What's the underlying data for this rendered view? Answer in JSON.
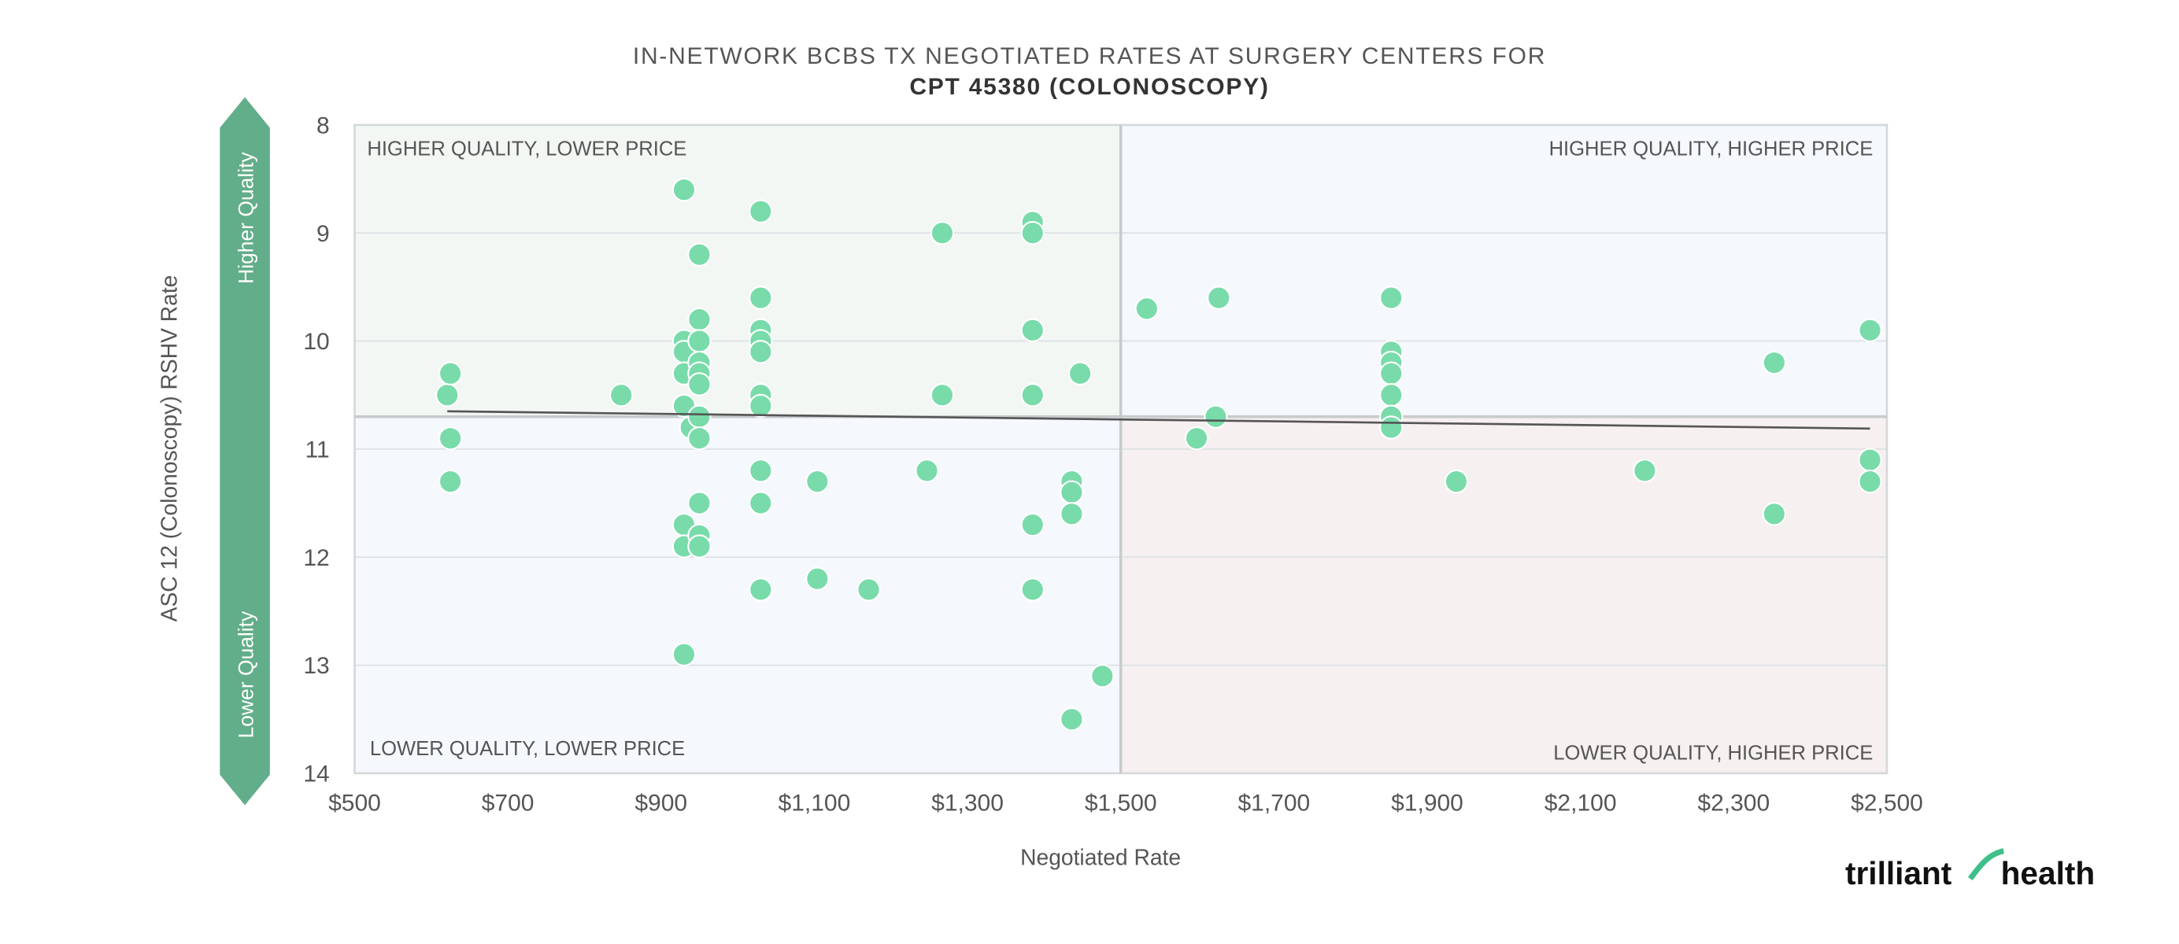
{
  "chart_data": {
    "type": "scatter",
    "title": "IN-NETWORK BCBS TX NEGOTIATED RATES AT SURGERY CENTERS FOR",
    "subtitle": "CPT 45380 (COLONOSCOPY)",
    "xlabel": "Negotiated Rate",
    "ylabel": "ASC 12 (Colonoscopy) RSHV Rate",
    "xlim": [
      500,
      2500
    ],
    "ylim": [
      8,
      14
    ],
    "y_inverted": true,
    "grid": true,
    "x_ticks": [
      "$500",
      "$700",
      "$900",
      "$1,100",
      "$1,300",
      "$1,500",
      "$1,700",
      "$1,900",
      "$2,100",
      "$2,300",
      "$2,500"
    ],
    "x_tick_values": [
      500,
      700,
      900,
      1100,
      1300,
      1500,
      1700,
      1900,
      2100,
      2300,
      2500
    ],
    "y_ticks": [
      "8",
      "9",
      "10",
      "11",
      "12",
      "13",
      "14"
    ],
    "y_tick_values": [
      8,
      9,
      10,
      11,
      12,
      13,
      14
    ],
    "quadrant_split": {
      "x": 1500,
      "y": 10.7
    },
    "quadrants": {
      "top_left": "HIGHER QUALITY, LOWER PRICE",
      "top_right": "HIGHER QUALITY, HIGHER PRICE",
      "bottom_left": "LOWER QUALITY, LOWER PRICE",
      "bottom_right": "LOWER QUALITY, HIGHER PRICE"
    },
    "quality_arrow": {
      "top": "Higher Quality",
      "bottom": "Lower Quality"
    },
    "trendline": {
      "x": [
        621,
        2478
      ],
      "y": [
        10.65,
        10.81
      ]
    },
    "points": [
      [
        621,
        10.5
      ],
      [
        625,
        10.3
      ],
      [
        625,
        10.9
      ],
      [
        625,
        11.3
      ],
      [
        848,
        10.5
      ],
      [
        930,
        8.6
      ],
      [
        930,
        10.0
      ],
      [
        930,
        10.1
      ],
      [
        930,
        10.3
      ],
      [
        930,
        10.6
      ],
      [
        930,
        11.7
      ],
      [
        930,
        11.9
      ],
      [
        930,
        12.9
      ],
      [
        939,
        10.8
      ],
      [
        950,
        9.2
      ],
      [
        950,
        9.8
      ],
      [
        950,
        10.0
      ],
      [
        950,
        10.2
      ],
      [
        950,
        10.3
      ],
      [
        950,
        10.4
      ],
      [
        950,
        10.7
      ],
      [
        950,
        10.9
      ],
      [
        950,
        11.5
      ],
      [
        950,
        11.8
      ],
      [
        950,
        11.9
      ],
      [
        1030,
        8.8
      ],
      [
        1030,
        9.6
      ],
      [
        1030,
        9.9
      ],
      [
        1030,
        10.0
      ],
      [
        1030,
        10.1
      ],
      [
        1030,
        10.5
      ],
      [
        1030,
        10.6
      ],
      [
        1030,
        11.2
      ],
      [
        1030,
        11.5
      ],
      [
        1030,
        12.3
      ],
      [
        1104,
        11.3
      ],
      [
        1104,
        12.2
      ],
      [
        1171,
        12.3
      ],
      [
        1247,
        11.2
      ],
      [
        1267,
        9.0
      ],
      [
        1267,
        10.5
      ],
      [
        1385,
        8.9
      ],
      [
        1385,
        9.0
      ],
      [
        1385,
        9.9
      ],
      [
        1385,
        10.5
      ],
      [
        1385,
        11.7
      ],
      [
        1385,
        12.3
      ],
      [
        1436,
        11.3
      ],
      [
        1436,
        11.4
      ],
      [
        1436,
        11.6
      ],
      [
        1436,
        13.5
      ],
      [
        1447,
        10.3
      ],
      [
        1476,
        13.1
      ],
      [
        1534,
        9.7
      ],
      [
        1599,
        10.9
      ],
      [
        1624,
        10.7
      ],
      [
        1628,
        9.6
      ],
      [
        1853,
        9.6
      ],
      [
        1853,
        10.1
      ],
      [
        1853,
        10.2
      ],
      [
        1853,
        10.3
      ],
      [
        1853,
        10.5
      ],
      [
        1853,
        10.7
      ],
      [
        1853,
        10.8
      ],
      [
        1938,
        11.3
      ],
      [
        2184,
        11.2
      ],
      [
        2353,
        10.2
      ],
      [
        2353,
        11.6
      ],
      [
        2478,
        9.9
      ],
      [
        2478,
        11.1
      ],
      [
        2478,
        11.3
      ]
    ],
    "colors": {
      "point": "#79dbaa",
      "arrow": "#62ad8a",
      "trendline": "#555555"
    }
  },
  "logo": {
    "text": "trilliant health"
  }
}
